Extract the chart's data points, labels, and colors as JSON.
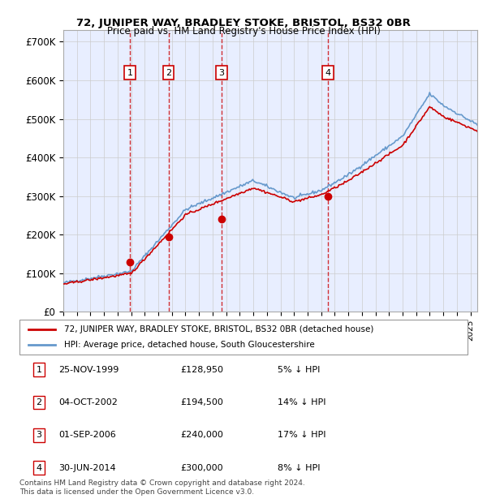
{
  "title1": "72, JUNIPER WAY, BRADLEY STOKE, BRISTOL, BS32 0BR",
  "title2": "Price paid vs. HM Land Registry's House Price Index (HPI)",
  "ylabel_ticks": [
    "£0",
    "£100K",
    "£200K",
    "£300K",
    "£400K",
    "£500K",
    "£600K",
    "£700K"
  ],
  "ytick_values": [
    0,
    100000,
    200000,
    300000,
    400000,
    500000,
    600000,
    700000
  ],
  "ylim": [
    0,
    730000
  ],
  "xlim_start": 1995.0,
  "xlim_end": 2025.5,
  "background_color": "#f0f4ff",
  "plot_bg_color": "#e8eeff",
  "hpi_color": "#6699cc",
  "price_color": "#cc0000",
  "sale_dates": [
    1999.9,
    2002.75,
    2006.67,
    2014.5
  ],
  "sale_prices": [
    128950,
    194500,
    240000,
    300000
  ],
  "sale_labels": [
    "1",
    "2",
    "3",
    "4"
  ],
  "legend_line1": "72, JUNIPER WAY, BRADLEY STOKE, BRISTOL, BS32 0BR (detached house)",
  "legend_line2": "HPI: Average price, detached house, South Gloucestershire",
  "table_rows": [
    [
      "1",
      "25-NOV-1999",
      "£128,950",
      "5% ↓ HPI"
    ],
    [
      "2",
      "04-OCT-2002",
      "£194,500",
      "14% ↓ HPI"
    ],
    [
      "3",
      "01-SEP-2006",
      "£240,000",
      "17% ↓ HPI"
    ],
    [
      "4",
      "30-JUN-2014",
      "£300,000",
      "8% ↓ HPI"
    ]
  ],
  "footnote": "Contains HM Land Registry data © Crown copyright and database right 2024.\nThis data is licensed under the Open Government Licence v3.0.",
  "grid_color": "#cccccc",
  "vline_color": "#cc0000"
}
